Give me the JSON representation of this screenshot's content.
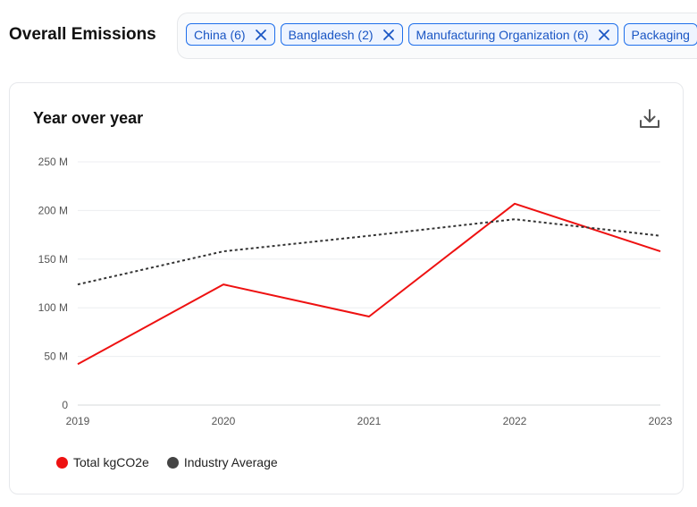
{
  "header": {
    "title": "Overall Emissions"
  },
  "filters": [
    {
      "label": "China (6)"
    },
    {
      "label": "Bangladesh (2)"
    },
    {
      "label": "Manufacturing Organization (6)"
    },
    {
      "label": "Packaging"
    }
  ],
  "card": {
    "title": "Year over year",
    "download_icon": "download-icon"
  },
  "chart_data": {
    "type": "line",
    "categories": [
      "2019",
      "2020",
      "2021",
      "2022",
      "2023"
    ],
    "yticks": [
      "0",
      "50 M",
      "100 M",
      "150 M",
      "200 M",
      "250 M"
    ],
    "ylim": [
      0,
      250
    ],
    "grid": true,
    "legend_position": "bottom-left",
    "series": [
      {
        "name": "Total kgCO2e",
        "values": [
          42,
          124,
          91,
          207,
          158
        ],
        "color": "#ee1111",
        "style": "solid"
      },
      {
        "name": "Industry Average",
        "values": [
          124,
          158,
          174,
          191,
          174
        ],
        "color": "#333333",
        "style": "dotted"
      }
    ]
  }
}
